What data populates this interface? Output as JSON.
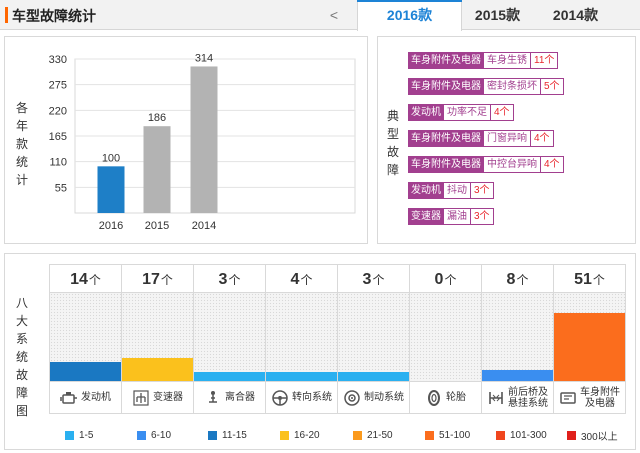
{
  "header": {
    "title": "车型故障统计",
    "prev_label": "<",
    "tabs": [
      {
        "label": "2016款",
        "active": true
      },
      {
        "label": "2015款",
        "active": false
      },
      {
        "label": "2014款",
        "active": false
      }
    ]
  },
  "year_panel": {
    "side_label": [
      "各",
      "年",
      "款",
      "统",
      "计"
    ]
  },
  "chart_data": [
    {
      "type": "bar",
      "categories": [
        "2016",
        "2015",
        "2014"
      ],
      "values": [
        100,
        186,
        314
      ],
      "yticks": [
        55,
        110,
        165,
        220,
        275,
        330
      ],
      "ylim": [
        0,
        330
      ],
      "grid": true,
      "colors": [
        "#1e7fc7",
        "#b3b3b3",
        "#b3b3b3"
      ]
    },
    {
      "type": "bar",
      "categories": [
        "发动机",
        "变速器",
        "离合器",
        "转向系统",
        "制动系统",
        "轮胎",
        "前后桥及悬挂系统",
        "车身附件及电器"
      ],
      "label_lines": [
        [
          "发动机"
        ],
        [
          "变速器"
        ],
        [
          "离合器"
        ],
        [
          "转向系统"
        ],
        [
          "制动系统"
        ],
        [
          "轮胎"
        ],
        [
          "前后桥及",
          "悬挂系统"
        ],
        [
          "车身附件",
          "及电器"
        ]
      ],
      "icons": [
        "engine-icon",
        "gear-shift-icon",
        "clutch-icon",
        "steering-wheel-icon",
        "brake-disc-icon",
        "tire-icon",
        "suspension-icon",
        "car-body-icon"
      ],
      "values": [
        14,
        17,
        3,
        4,
        3,
        0,
        8,
        51
      ],
      "unit": "个",
      "colors": [
        "#1a78c2",
        "#fbc11c",
        "#2ab0f0",
        "#2ab0f0",
        "#2ab0f0",
        "#2ab0f0",
        "#3a8ef0",
        "#fb6d1d"
      ]
    }
  ],
  "faults_panel": {
    "side_label": [
      "典",
      "型",
      "故",
      "障"
    ],
    "items": [
      {
        "category": "车身附件及电器",
        "name": "车身生锈",
        "count": "11个"
      },
      {
        "category": "车身附件及电器",
        "name": "密封条损坏",
        "count": "5个"
      },
      {
        "category": "发动机",
        "name": "功率不足",
        "count": "4个"
      },
      {
        "category": "车身附件及电器",
        "name": "门窗异响",
        "count": "4个"
      },
      {
        "category": "车身附件及电器",
        "name": "中控台异响",
        "count": "4个"
      },
      {
        "category": "发动机",
        "name": "抖动",
        "count": "3个"
      },
      {
        "category": "变速器",
        "name": "漏油",
        "count": "3个"
      }
    ]
  },
  "system_panel": {
    "side_label": [
      "八",
      "大",
      "系",
      "统",
      "故",
      "障",
      "图"
    ]
  },
  "legend": [
    {
      "label": "1-5",
      "color": "#2ab0f0"
    },
    {
      "label": "6-10",
      "color": "#3a8ef0"
    },
    {
      "label": "11-15",
      "color": "#1a78c2"
    },
    {
      "label": "16-20",
      "color": "#fbc11c"
    },
    {
      "label": "21-50",
      "color": "#fb9a1d"
    },
    {
      "label": "51-100",
      "color": "#fb6d1d"
    },
    {
      "label": "101-300",
      "color": "#f0461e"
    },
    {
      "label": "300以上",
      "color": "#e0201b"
    }
  ]
}
